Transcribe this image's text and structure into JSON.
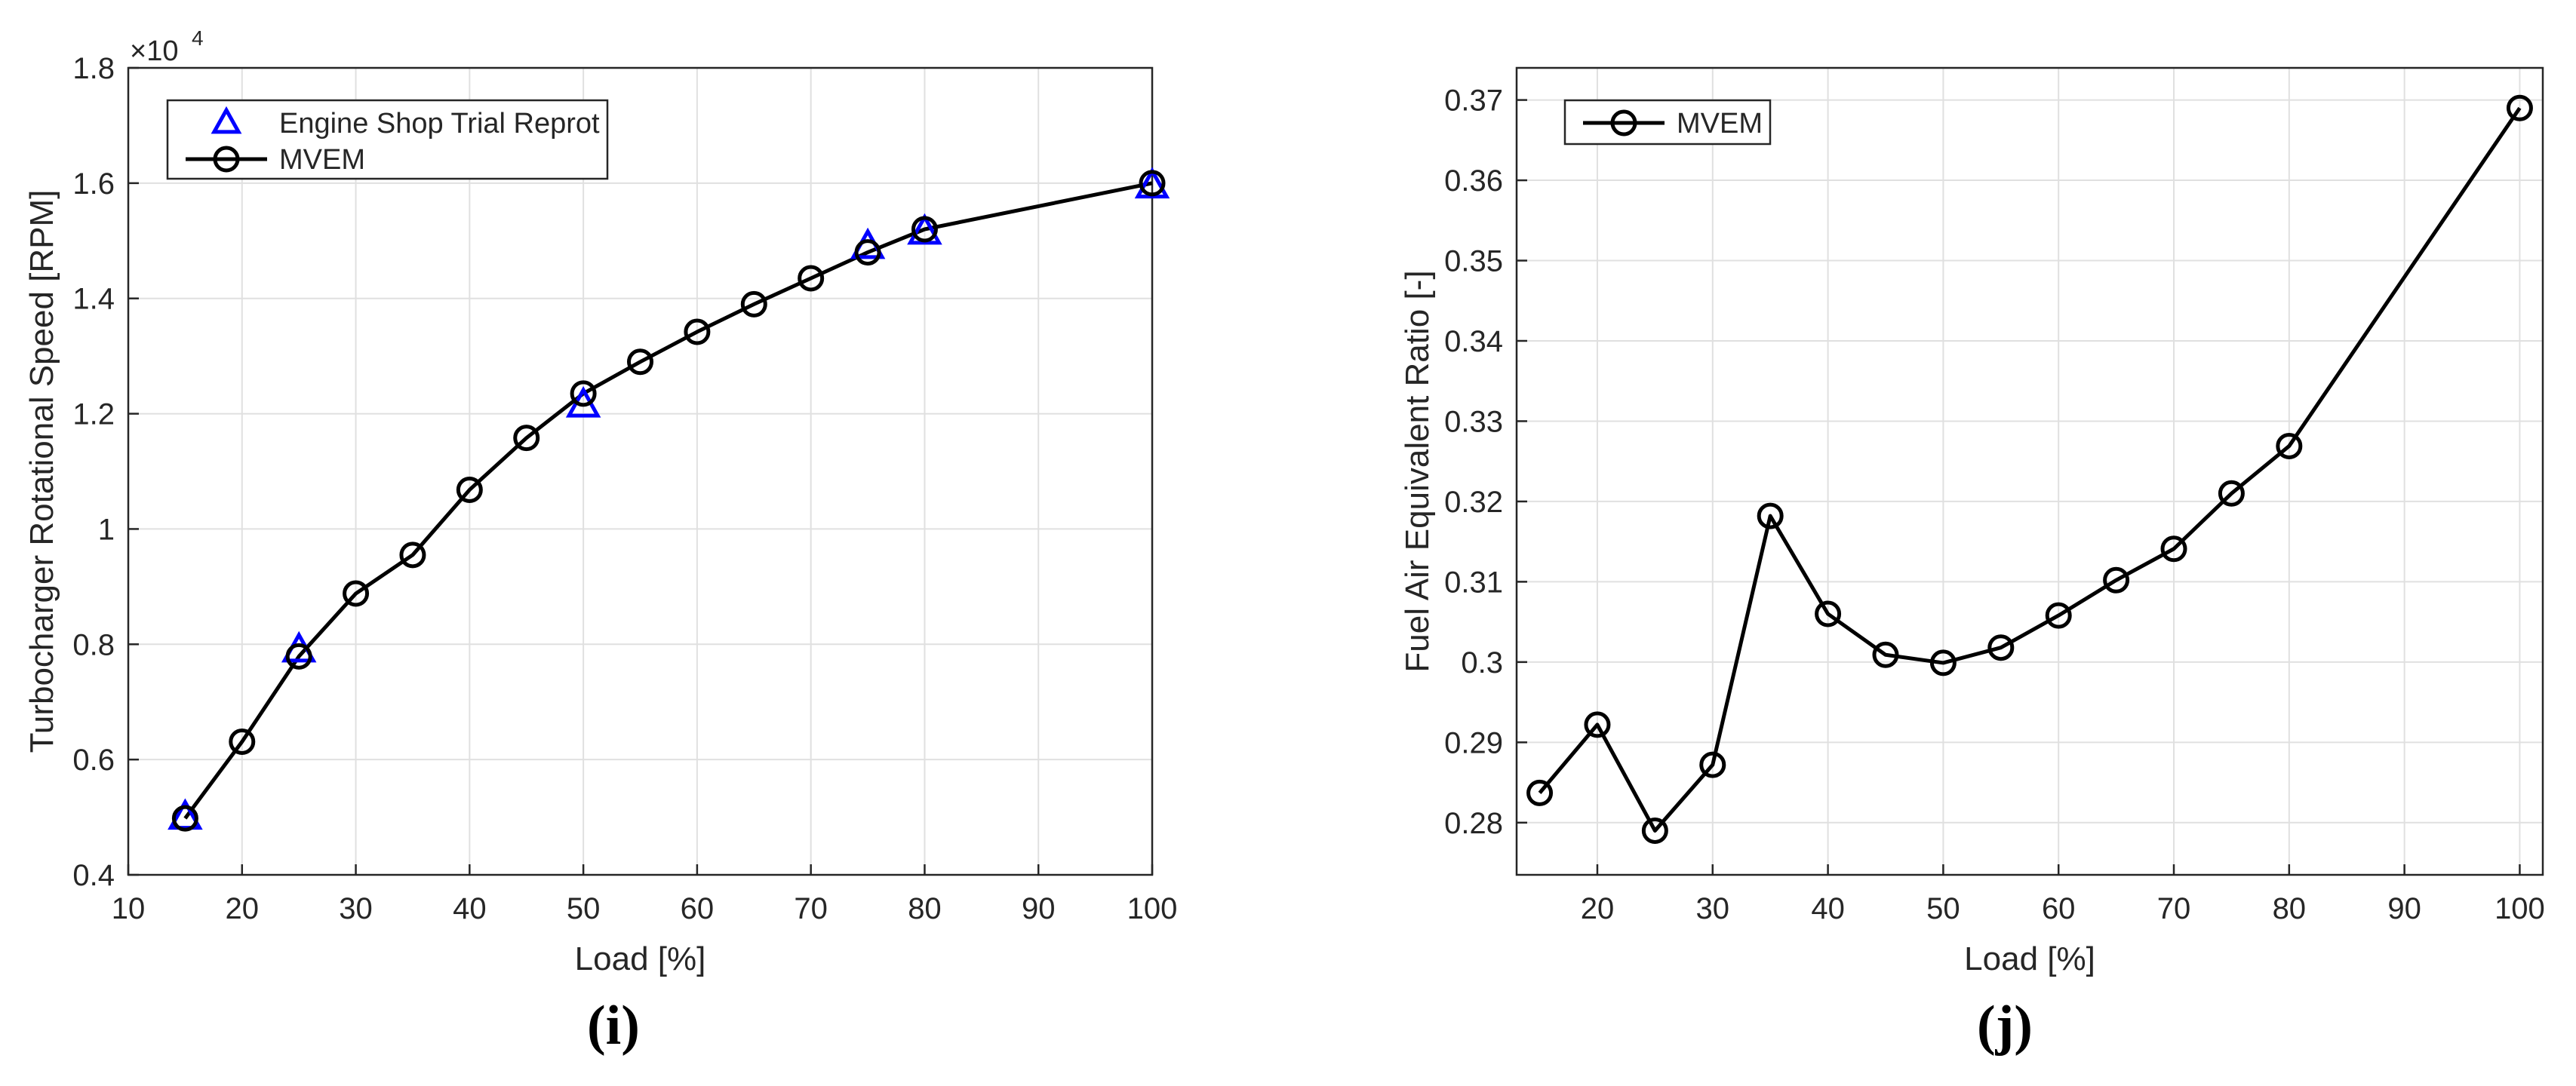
{
  "colors": {
    "background": "#ffffff",
    "grid": "#e0e0e0",
    "axis": "#262626",
    "mvem": "#000000",
    "shop_trial": "#0000ff"
  },
  "panels": [
    {
      "label": "(i)"
    },
    {
      "label": "(j)"
    }
  ],
  "chart_data": [
    {
      "type": "line",
      "xlabel": "Load [%]",
      "ylabel": "Turbocharger Rotational Speed [RPM]",
      "y_exponent_label": "×10",
      "y_exponent_power": "4",
      "xlim": [
        10,
        100
      ],
      "ylim": [
        0.4,
        1.8
      ],
      "xticks": [
        "10",
        "20",
        "30",
        "40",
        "50",
        "60",
        "70",
        "80",
        "90",
        "100"
      ],
      "yticks": [
        "0.4",
        "0.6",
        "0.8",
        "1",
        "1.2",
        "1.4",
        "1.6",
        "1.8"
      ],
      "grid": true,
      "legend_position": "top-left",
      "series": [
        {
          "name": "Engine Shop Trial Reprot",
          "marker": "triangle",
          "line": false,
          "color": "#0000ff",
          "x": [
            15,
            25,
            50,
            75,
            80,
            100
          ],
          "y": [
            0.5,
            0.79,
            1.215,
            1.49,
            1.515,
            1.595
          ]
        },
        {
          "name": "MVEM",
          "marker": "circle",
          "line": true,
          "color": "#000000",
          "x": [
            15,
            20,
            25,
            30,
            35,
            40,
            45,
            50,
            55,
            60,
            65,
            70,
            75,
            80,
            100
          ],
          "y": [
            0.498,
            0.631,
            0.779,
            0.888,
            0.955,
            1.068,
            1.158,
            1.235,
            1.29,
            1.342,
            1.39,
            1.435,
            1.48,
            1.52,
            1.6
          ]
        }
      ]
    },
    {
      "type": "line",
      "xlabel": "Load [%]",
      "ylabel": "Fuel Air Equivalent Ratio [-]",
      "xlim": [
        13,
        102
      ],
      "ylim": [
        0.2735,
        0.374
      ],
      "xticks": [
        "20",
        "30",
        "40",
        "50",
        "60",
        "70",
        "80",
        "90",
        "100"
      ],
      "yticks": [
        "0.28",
        "0.29",
        "0.3",
        "0.31",
        "0.32",
        "0.33",
        "0.34",
        "0.35",
        "0.36",
        "0.37"
      ],
      "grid": true,
      "legend_position": "top-left",
      "series": [
        {
          "name": "MVEM",
          "marker": "circle",
          "line": true,
          "color": "#000000",
          "x": [
            15,
            20,
            25,
            30,
            35,
            40,
            45,
            50,
            55,
            60,
            65,
            70,
            75,
            80,
            100
          ],
          "y": [
            0.2837,
            0.2922,
            0.279,
            0.2872,
            0.3182,
            0.306,
            0.3009,
            0.2999,
            0.3018,
            0.3058,
            0.3102,
            0.3141,
            0.321,
            0.3269,
            0.369
          ]
        }
      ]
    }
  ]
}
